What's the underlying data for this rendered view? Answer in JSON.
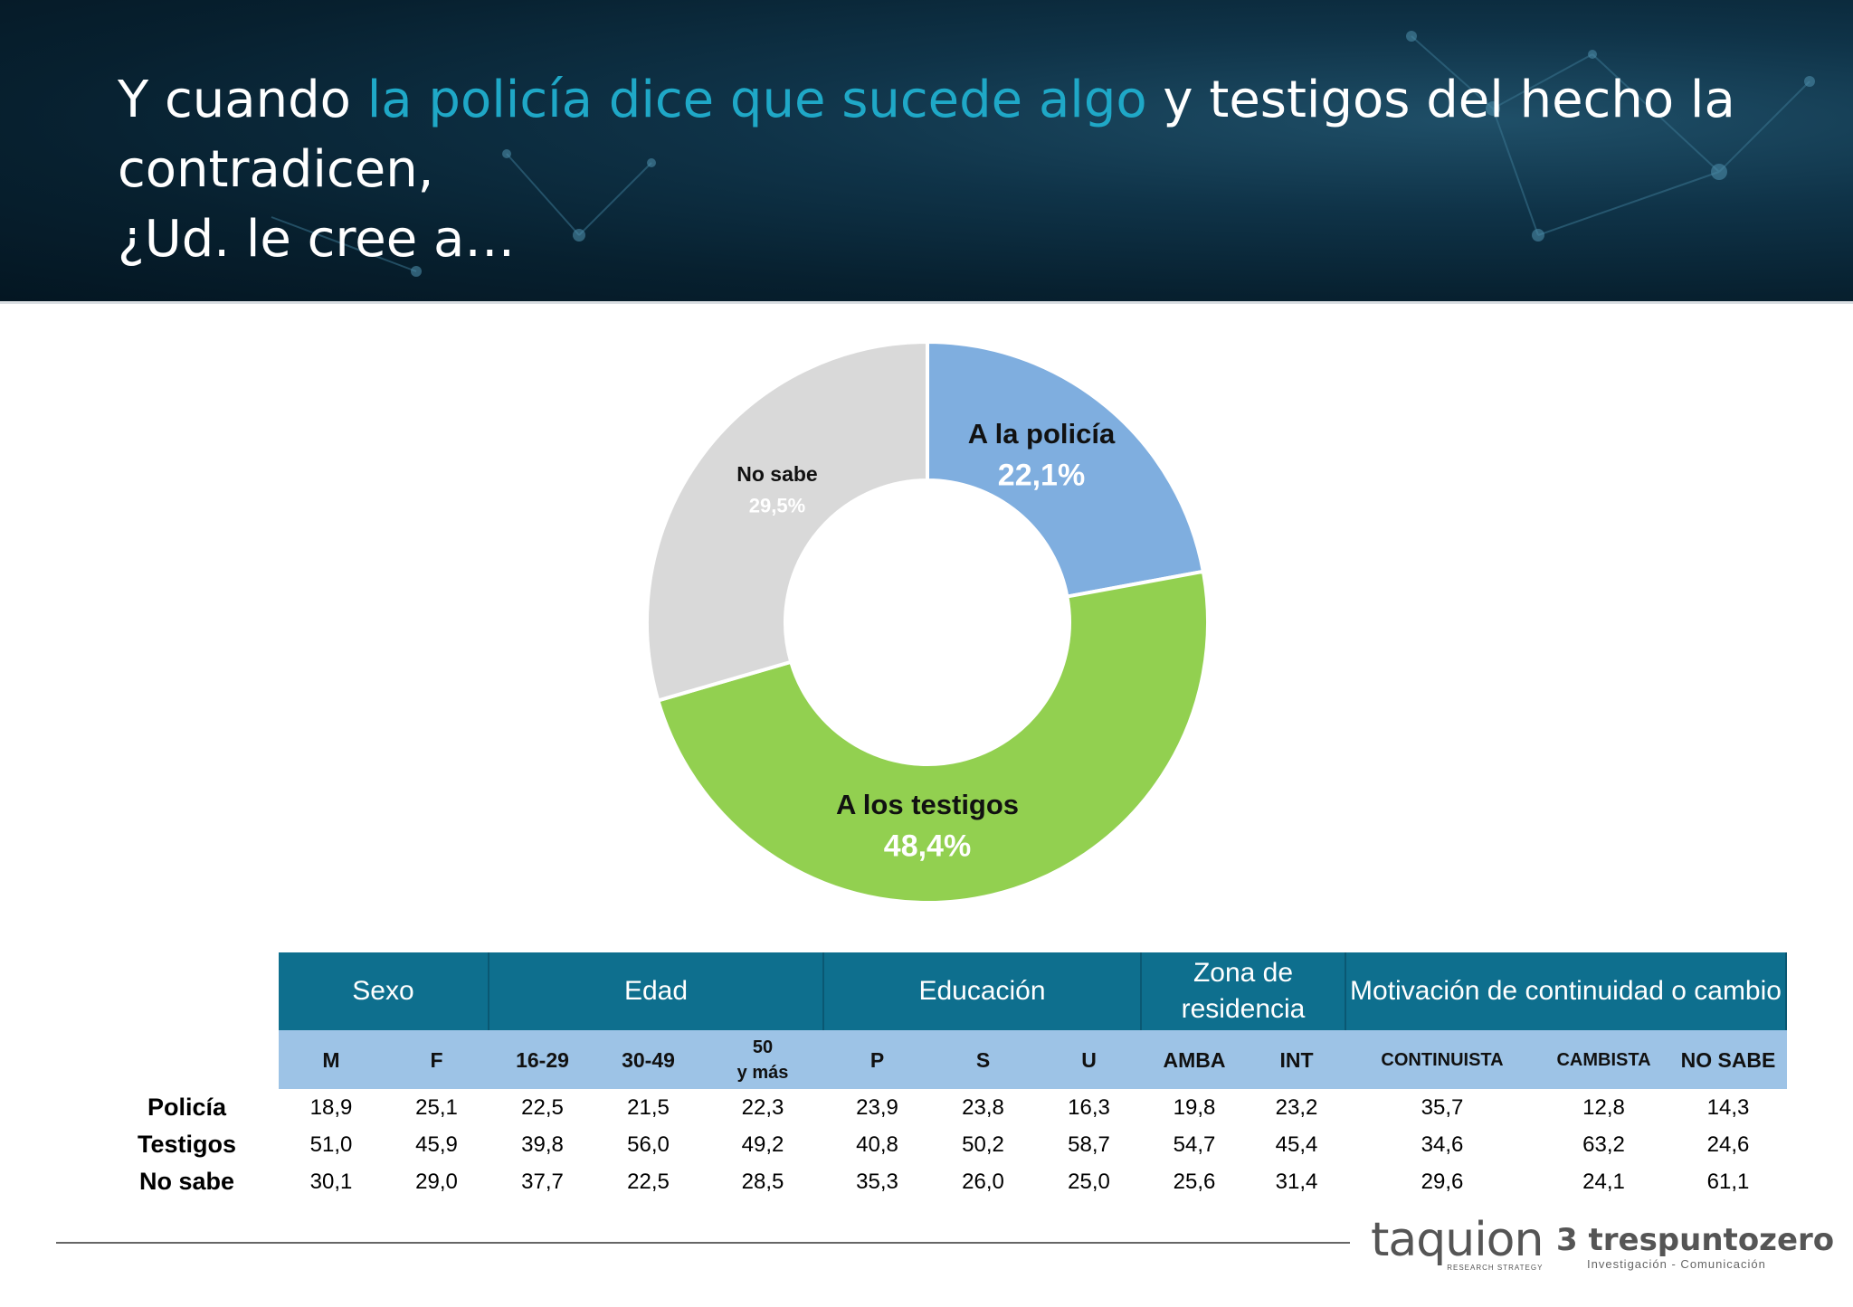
{
  "header": {
    "title_part1": "Y cuando ",
    "title_highlight": "la policía dice que sucede algo",
    "title_part2": " y testigos del hecho la contradicen,",
    "title_line3": "¿Ud. le cree a…",
    "highlight_color": "#1fa8c7"
  },
  "chart_data": {
    "type": "pie",
    "donut": true,
    "title": "",
    "slices": [
      {
        "label": "A la policía",
        "display": "22,1%",
        "value": 22.1,
        "color": "#7faedf"
      },
      {
        "label": "A los testigos",
        "display": "48,4%",
        "value": 48.4,
        "color": "#92d050"
      },
      {
        "label": "No sabe",
        "display": "29,5%",
        "value": 29.5,
        "color": "#d9d9d9"
      }
    ]
  },
  "table": {
    "groups": [
      {
        "label": "Sexo",
        "span": 2
      },
      {
        "label": "Edad",
        "span": 3
      },
      {
        "label": "Educación",
        "span": 3
      },
      {
        "label": "Zona de residencia",
        "span": 2
      },
      {
        "label": "Motivación de continuidad o cambio",
        "span": 3
      }
    ],
    "columns": [
      "M",
      "F",
      "16-29",
      "30-49",
      "50 y más",
      "P",
      "S",
      "U",
      "AMBA",
      "INT",
      "CONTINUISTA",
      "CAMBISTA",
      "NO SABE"
    ],
    "rows": [
      {
        "label": "Policía",
        "values": [
          "18,9",
          "25,1",
          "22,5",
          "21,5",
          "22,3",
          "23,9",
          "23,8",
          "16,3",
          "19,8",
          "23,2",
          "35,7",
          "12,8",
          "14,3"
        ]
      },
      {
        "label": "Testigos",
        "values": [
          "51,0",
          "45,9",
          "39,8",
          "56,0",
          "49,2",
          "40,8",
          "50,2",
          "58,7",
          "54,7",
          "45,4",
          "34,6",
          "63,2",
          "24,6"
        ]
      },
      {
        "label": "No sabe",
        "values": [
          "30,1",
          "29,0",
          "37,7",
          "22,5",
          "28,5",
          "35,3",
          "26,0",
          "25,0",
          "25,6",
          "31,4",
          "29,6",
          "24,1",
          "61,1"
        ]
      }
    ]
  },
  "footer": {
    "logo1_name": "taquion",
    "logo1_tag": "RESEARCH STRATEGY",
    "logo2_name": "3 trespuntozero",
    "logo2_tag": "Investigación - Comunicación"
  }
}
